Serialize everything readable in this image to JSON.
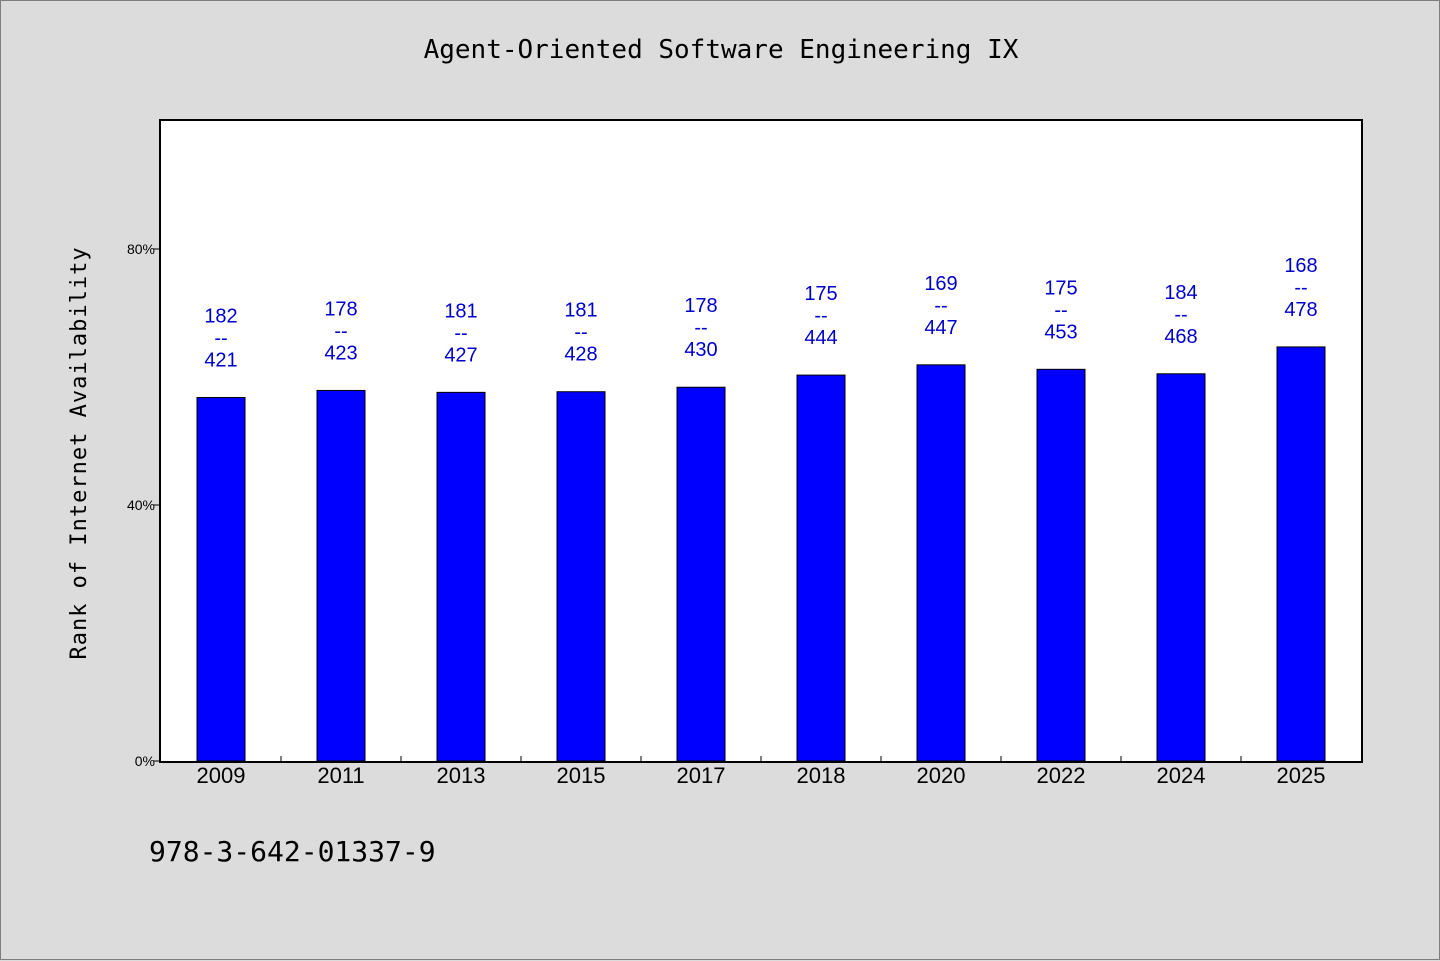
{
  "chart_data": {
    "type": "bar",
    "title": "Agent-Oriented Software Engineering IX",
    "xlabel": "",
    "ylabel": "Rank of Internet Availability",
    "ylim": [
      0,
      100
    ],
    "yticks": [
      {
        "value": 0,
        "label": "0%"
      },
      {
        "value": 40,
        "label": "40%"
      },
      {
        "value": 80,
        "label": "80%"
      }
    ],
    "categories": [
      "2009",
      "2011",
      "2013",
      "2015",
      "2017",
      "2018",
      "2020",
      "2022",
      "2024",
      "2025"
    ],
    "values": [
      56.8,
      57.9,
      57.6,
      57.7,
      58.4,
      60.3,
      61.9,
      61.2,
      60.5,
      64.7
    ],
    "bar_labels": [
      {
        "top": "182",
        "sep": "--",
        "bottom": "421"
      },
      {
        "top": "178",
        "sep": "--",
        "bottom": "423"
      },
      {
        "top": "181",
        "sep": "--",
        "bottom": "427"
      },
      {
        "top": "181",
        "sep": "--",
        "bottom": "428"
      },
      {
        "top": "178",
        "sep": "--",
        "bottom": "430"
      },
      {
        "top": "175",
        "sep": "--",
        "bottom": "444"
      },
      {
        "top": "169",
        "sep": "--",
        "bottom": "447"
      },
      {
        "top": "175",
        "sep": "--",
        "bottom": "453"
      },
      {
        "top": "184",
        "sep": "--",
        "bottom": "468"
      },
      {
        "top": "168",
        "sep": "--",
        "bottom": "478"
      }
    ],
    "grid": false,
    "legend": "none",
    "colors": {
      "bar": "#0000ff",
      "label": "#0000cc",
      "background": "#dcdcdc",
      "plot": "#ffffff"
    }
  },
  "footer": {
    "isbn": "978-3-642-01337-9"
  }
}
